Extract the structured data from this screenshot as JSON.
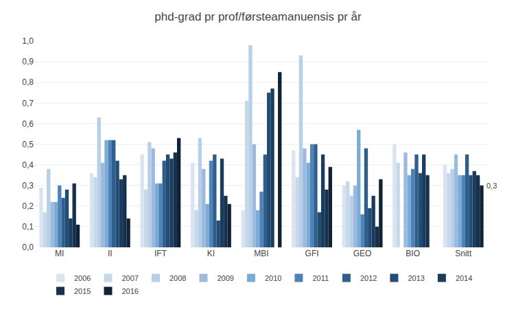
{
  "chart_data": {
    "type": "bar",
    "title": "phd-grad pr prof/førsteamanuensis pr år",
    "categories": [
      "MI",
      "II",
      "IFT",
      "KI",
      "MBI",
      "GFI",
      "GEO",
      "BIO",
      "Snitt"
    ],
    "series": [
      {
        "name": "2006",
        "color": "#d9e4f0",
        "values": [
          0.29,
          0.36,
          0.45,
          0.41,
          0.18,
          0.47,
          0.3,
          0.5,
          0.4
        ]
      },
      {
        "name": "2007",
        "color": "#c6d9eb",
        "values": [
          0.17,
          0.34,
          0.28,
          0.18,
          0.71,
          0.34,
          0.32,
          0.41,
          0.36
        ]
      },
      {
        "name": "2008",
        "color": "#b8cfe8",
        "values": [
          0.38,
          0.63,
          0.51,
          0.53,
          0.98,
          0.93,
          0.25,
          0.0,
          0.38
        ]
      },
      {
        "name": "2009",
        "color": "#9dbade",
        "values": [
          0.22,
          0.41,
          0.48,
          0.38,
          0.5,
          0.48,
          0.3,
          0.46,
          0.45
        ]
      },
      {
        "name": "2010",
        "color": "#7aadd4",
        "values": [
          0.22,
          0.52,
          0.31,
          0.21,
          0.18,
          0.41,
          0.57,
          0.35,
          0.35
        ]
      },
      {
        "name": "2011",
        "color": "#4f81bd",
        "values": [
          0.3,
          0.52,
          0.31,
          0.42,
          0.27,
          0.5,
          0.16,
          0.38,
          0.35
        ]
      },
      {
        "name": "2012",
        "color": "#2e5f8a",
        "values": [
          0.24,
          0.52,
          0.42,
          0.45,
          0.45,
          0.5,
          0.48,
          0.45,
          0.45
        ]
      },
      {
        "name": "2013",
        "color": "#214c73",
        "values": [
          0.28,
          0.42,
          0.45,
          0.13,
          0.75,
          0.17,
          0.19,
          0.36,
          0.35
        ]
      },
      {
        "name": "2014",
        "color": "#1a3d5f",
        "values": [
          0.14,
          0.33,
          0.43,
          0.43,
          0.77,
          0.45,
          0.25,
          0.45,
          0.37
        ]
      },
      {
        "name": "2015",
        "color": "#16304d",
        "values": [
          0.31,
          0.35,
          0.46,
          0.25,
          0.0,
          0.28,
          0.1,
          0.35,
          0.35
        ]
      },
      {
        "name": "2016",
        "color": "#0f2236",
        "values": [
          0.11,
          0.14,
          0.53,
          0.21,
          0.85,
          0.39,
          0.33,
          0.0,
          0.3
        ]
      }
    ],
    "annotations": [
      {
        "text": "0,3",
        "category": "Snitt",
        "series": "2016"
      }
    ],
    "ylim": [
      0.0,
      1.0
    ],
    "yticks": [
      {
        "value": 0.0,
        "label": "0,0"
      },
      {
        "value": 0.1,
        "label": "0,1"
      },
      {
        "value": 0.2,
        "label": "0,2"
      },
      {
        "value": 0.3,
        "label": "0,3"
      },
      {
        "value": 0.4,
        "label": "0,4"
      },
      {
        "value": 0.5,
        "label": "0,5"
      },
      {
        "value": 0.6,
        "label": "0,6"
      },
      {
        "value": 0.7,
        "label": "0,7"
      },
      {
        "value": 0.8,
        "label": "0,8"
      },
      {
        "value": 0.9,
        "label": "0,9"
      },
      {
        "value": 1.0,
        "label": "1,0"
      }
    ],
    "grid": true,
    "legend": "bottom"
  }
}
